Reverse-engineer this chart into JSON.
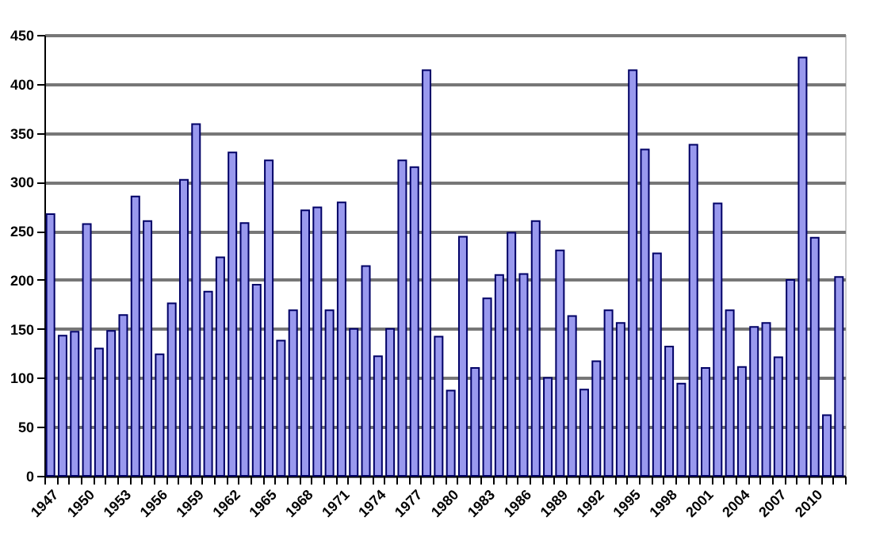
{
  "chart_data": {
    "type": "bar",
    "categories": [
      "1947",
      null,
      null,
      "1950",
      null,
      null,
      "1953",
      null,
      null,
      "1956",
      null,
      null,
      "1959",
      null,
      null,
      "1962",
      null,
      null,
      "1965",
      null,
      null,
      "1968",
      null,
      null,
      "1971",
      null,
      null,
      "1974",
      null,
      null,
      "1977",
      null,
      null,
      "1980",
      null,
      null,
      "1983",
      null,
      null,
      "1986",
      null,
      null,
      "1989",
      null,
      null,
      "1992",
      null,
      null,
      "1995",
      null,
      null,
      "1998",
      null,
      null,
      "2001",
      null,
      null,
      "2004",
      null,
      null,
      "2007",
      null,
      null,
      "2010",
      null,
      null
    ],
    "values": [
      267,
      143,
      147,
      257,
      130,
      148,
      164,
      285,
      260,
      124,
      176,
      302,
      359,
      188,
      223,
      330,
      258,
      195,
      322,
      138,
      169,
      271,
      274,
      169,
      279,
      150,
      214,
      122,
      150,
      322,
      315,
      414,
      142,
      87,
      244,
      110,
      181,
      205,
      248,
      206,
      260,
      100,
      230,
      163,
      88,
      117,
      169,
      156,
      414,
      333,
      227,
      132,
      94,
      338,
      110,
      278,
      169,
      111,
      152,
      156,
      121,
      200,
      427,
      243,
      62,
      203
    ],
    "color": "#9999ee",
    "ylim": [
      0,
      450
    ],
    "yticks": [
      0,
      50,
      100,
      150,
      200,
      250,
      300,
      350,
      400,
      450
    ],
    "grid": "y"
  }
}
